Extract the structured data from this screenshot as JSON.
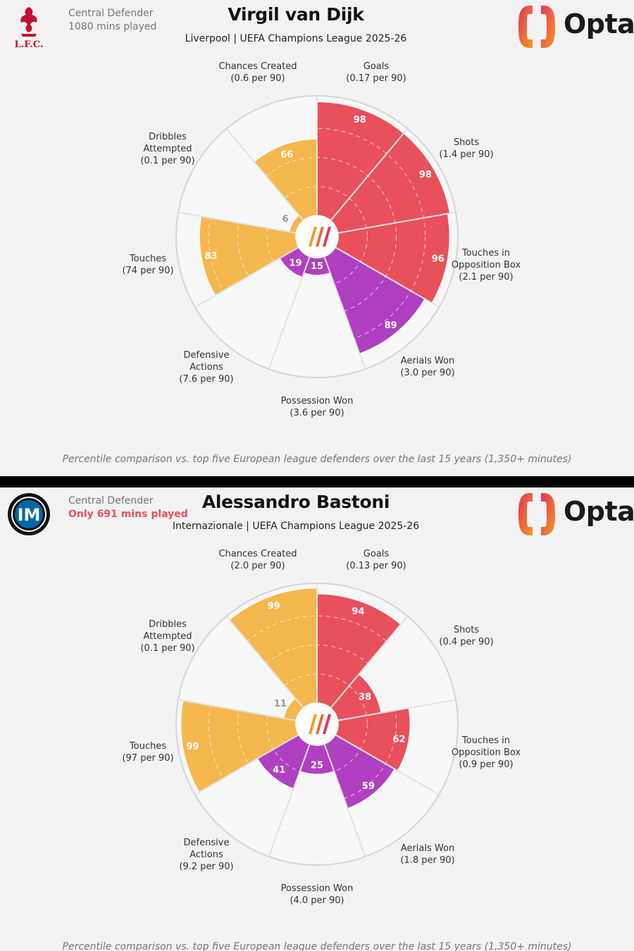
{
  "footnote": "Percentile comparison vs. top five European league defenders over the last 15 years (1,350+ minutes)",
  "brand": {
    "name": "Opta",
    "gradient": [
      "#e4325e",
      "#f39b1c"
    ]
  },
  "colors": {
    "attacking": "#e8505b",
    "possession": "#f5b84e",
    "defending": "#b040c0",
    "background": "#f2f2f2",
    "ring": "#d5d5d5",
    "grid": "#bdbdbd"
  },
  "players": [
    {
      "club_logo": "liverpool-crest-icon",
      "club_logo_text": "L.F.C.",
      "position": "Central Defender",
      "minutes": "1080 mins played",
      "minutes_warning": false,
      "name": "Virgil van Dijk",
      "subtitle": "Liverpool | UEFA Champions League 2025-26"
    },
    {
      "club_logo": "inter-crest-icon",
      "club_logo_text": "IM",
      "position": "Central Defender",
      "minutes": "Only 691 mins played",
      "minutes_warning": true,
      "name": "Alessandro Bastoni",
      "subtitle": "Internazionale | UEFA Champions League 2025-26"
    }
  ],
  "chart_data": [
    {
      "type": "polar-bar",
      "title": "Virgil van Dijk",
      "rlim": [
        0,
        100
      ],
      "categories": [
        "Goals",
        "Shots",
        "Touches in Opposition Box",
        "Aerials Won",
        "Possession Won",
        "Defensive Actions",
        "Touches",
        "Dribbles Attempted",
        "Chances Created"
      ],
      "label_lines": [
        [
          "Goals",
          "(0.17 per 90)"
        ],
        [
          "Shots",
          "(1.4 per 90)"
        ],
        [
          "Touches in",
          "Opposition Box",
          "(2.1 per 90)"
        ],
        [
          "Aerials Won",
          "(3.0 per 90)"
        ],
        [
          "Possession Won",
          "(3.6 per 90)"
        ],
        [
          "Defensive",
          "Actions",
          "(7.6 per 90)"
        ],
        [
          "Touches",
          "(74 per 90)"
        ],
        [
          "Dribbles",
          "Attempted",
          "(0.1 per 90)"
        ],
        [
          "Chances Created",
          "(0.6 per 90)"
        ]
      ],
      "groups": [
        "attacking",
        "attacking",
        "attacking",
        "defending",
        "defending",
        "defending",
        "possession",
        "possession",
        "possession"
      ],
      "values": [
        98,
        98,
        96,
        89,
        15,
        19,
        83,
        6,
        66
      ]
    },
    {
      "type": "polar-bar",
      "title": "Alessandro Bastoni",
      "rlim": [
        0,
        100
      ],
      "categories": [
        "Goals",
        "Shots",
        "Touches in Opposition Box",
        "Aerials Won",
        "Possession Won",
        "Defensive Actions",
        "Touches",
        "Dribbles Attempted",
        "Chances Created"
      ],
      "label_lines": [
        [
          "Goals",
          "(0.13 per 90)"
        ],
        [
          "Shots",
          "(0.4 per 90)"
        ],
        [
          "Touches in",
          "Opposition Box",
          "(0.9 per 90)"
        ],
        [
          "Aerials Won",
          "(1.8 per 90)"
        ],
        [
          "Possession Won",
          "(4.0 per 90)"
        ],
        [
          "Defensive",
          "Actions",
          "(9.2 per 90)"
        ],
        [
          "Touches",
          "(97 per 90)"
        ],
        [
          "Dribbles",
          "Attempted",
          "(0.1 per 90)"
        ],
        [
          "Chances Created",
          "(2.0 per 90)"
        ]
      ],
      "groups": [
        "attacking",
        "attacking",
        "attacking",
        "defending",
        "defending",
        "defending",
        "possession",
        "possession",
        "possession"
      ],
      "values": [
        94,
        38,
        62,
        59,
        25,
        41,
        99,
        11,
        99
      ]
    }
  ]
}
